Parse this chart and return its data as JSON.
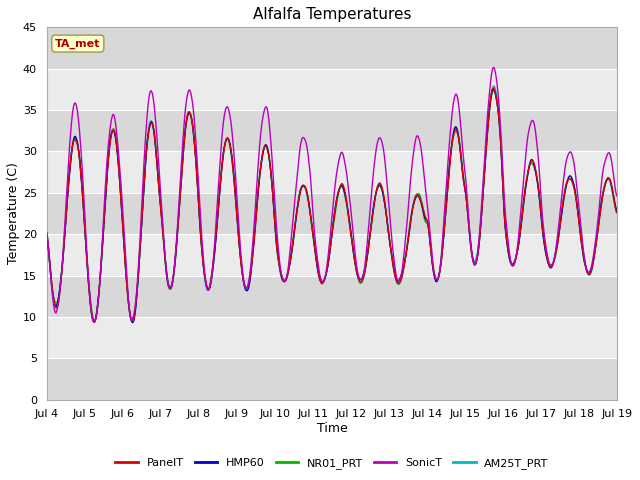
{
  "title": "Alfalfa Temperatures",
  "xlabel": "Time",
  "ylabel": "Temperature (C)",
  "ylim": [
    0,
    45
  ],
  "yticks": [
    0,
    5,
    10,
    15,
    20,
    25,
    30,
    35,
    40,
    45
  ],
  "xtick_labels": [
    "Jul 4",
    "Jul 5",
    "Jul 6",
    "Jul 7",
    "Jul 8",
    "Jul 9",
    "Jul 10",
    "Jul 11",
    "Jul 12",
    "Jul 13",
    "Jul 14",
    "Jul 15",
    "Jul 16",
    "Jul 17",
    "Jul 18",
    "Jul 19"
  ],
  "annotation_text": "TA_met",
  "annotation_color": "#aa0000",
  "annotation_bg": "#ffffcc",
  "lines": {
    "PanelT": {
      "color": "#dd0000",
      "lw": 1.0
    },
    "HMP60": {
      "color": "#0000cc",
      "lw": 1.0
    },
    "NR01_PRT": {
      "color": "#00bb00",
      "lw": 1.0
    },
    "SonicT": {
      "color": "#bb00bb",
      "lw": 1.0
    },
    "AM25T_PRT": {
      "color": "#00bbbb",
      "lw": 1.0
    }
  },
  "bg_color": "#ffffff",
  "plot_bg_light": "#ebebeb",
  "plot_bg_dark": "#d8d8d8",
  "grid_color": "#ffffff",
  "title_fontsize": 11,
  "axis_fontsize": 9,
  "tick_fontsize": 8,
  "n_days": 15,
  "n_per_day": 48,
  "day_mins_base": [
    11,
    9,
    9,
    13,
    13,
    13,
    14,
    14,
    14,
    14,
    14,
    16,
    16,
    16,
    15
  ],
  "day_maxs_base": [
    32,
    33,
    34,
    35,
    32,
    31,
    26,
    26,
    26,
    25,
    33,
    38,
    29,
    27,
    27
  ],
  "sonic_mins": [
    10,
    9,
    9,
    13,
    13,
    13,
    14,
    14,
    14,
    14,
    14,
    16,
    16,
    16,
    15
  ],
  "sonic_maxs": [
    36,
    35,
    38,
    38,
    36,
    36,
    32,
    30,
    32,
    32,
    37,
    40.5,
    34,
    30,
    30
  ],
  "figsize": [
    6.4,
    4.8
  ],
  "dpi": 100
}
